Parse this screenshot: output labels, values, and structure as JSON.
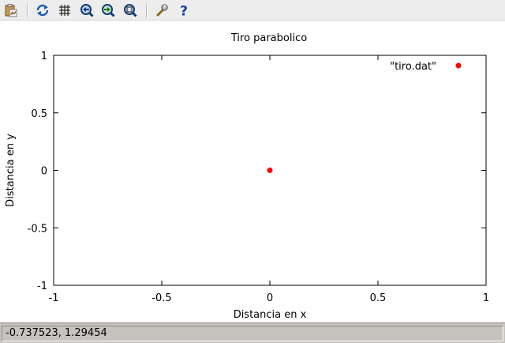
{
  "toolbar": {
    "buttons": [
      {
        "name": "copy-clipboard",
        "icon": "clipboard-icon"
      },
      {
        "name": "replot",
        "icon": "refresh-icon"
      },
      {
        "name": "grid",
        "icon": "grid-icon"
      },
      {
        "name": "zoom-previous",
        "icon": "zoom-previous-icon"
      },
      {
        "name": "zoom-next",
        "icon": "zoom-next-icon"
      },
      {
        "name": "autoscale",
        "icon": "zoom-fit-icon"
      },
      {
        "name": "options",
        "icon": "wrench-icon"
      },
      {
        "name": "help",
        "icon": "help-icon"
      }
    ]
  },
  "chart_data": {
    "type": "scatter",
    "title": "Tiro parabolico",
    "xlabel": "Distancia en x",
    "ylabel": "Distancia en y",
    "xlim": [
      -1,
      1
    ],
    "ylim": [
      -1,
      1
    ],
    "xticks": [
      "-1",
      "-0.5",
      "0",
      "0.5",
      "1"
    ],
    "yticks": [
      "-1",
      "-0.5",
      "0",
      "0.5",
      "1"
    ],
    "legend_position": "top-right",
    "grid": false,
    "series": [
      {
        "name": "\"tiro.dat\"",
        "color": "#ff0000",
        "points": [
          [
            0,
            0
          ]
        ]
      }
    ]
  },
  "status": {
    "coordinates": "-0.737523,  1.29454"
  }
}
